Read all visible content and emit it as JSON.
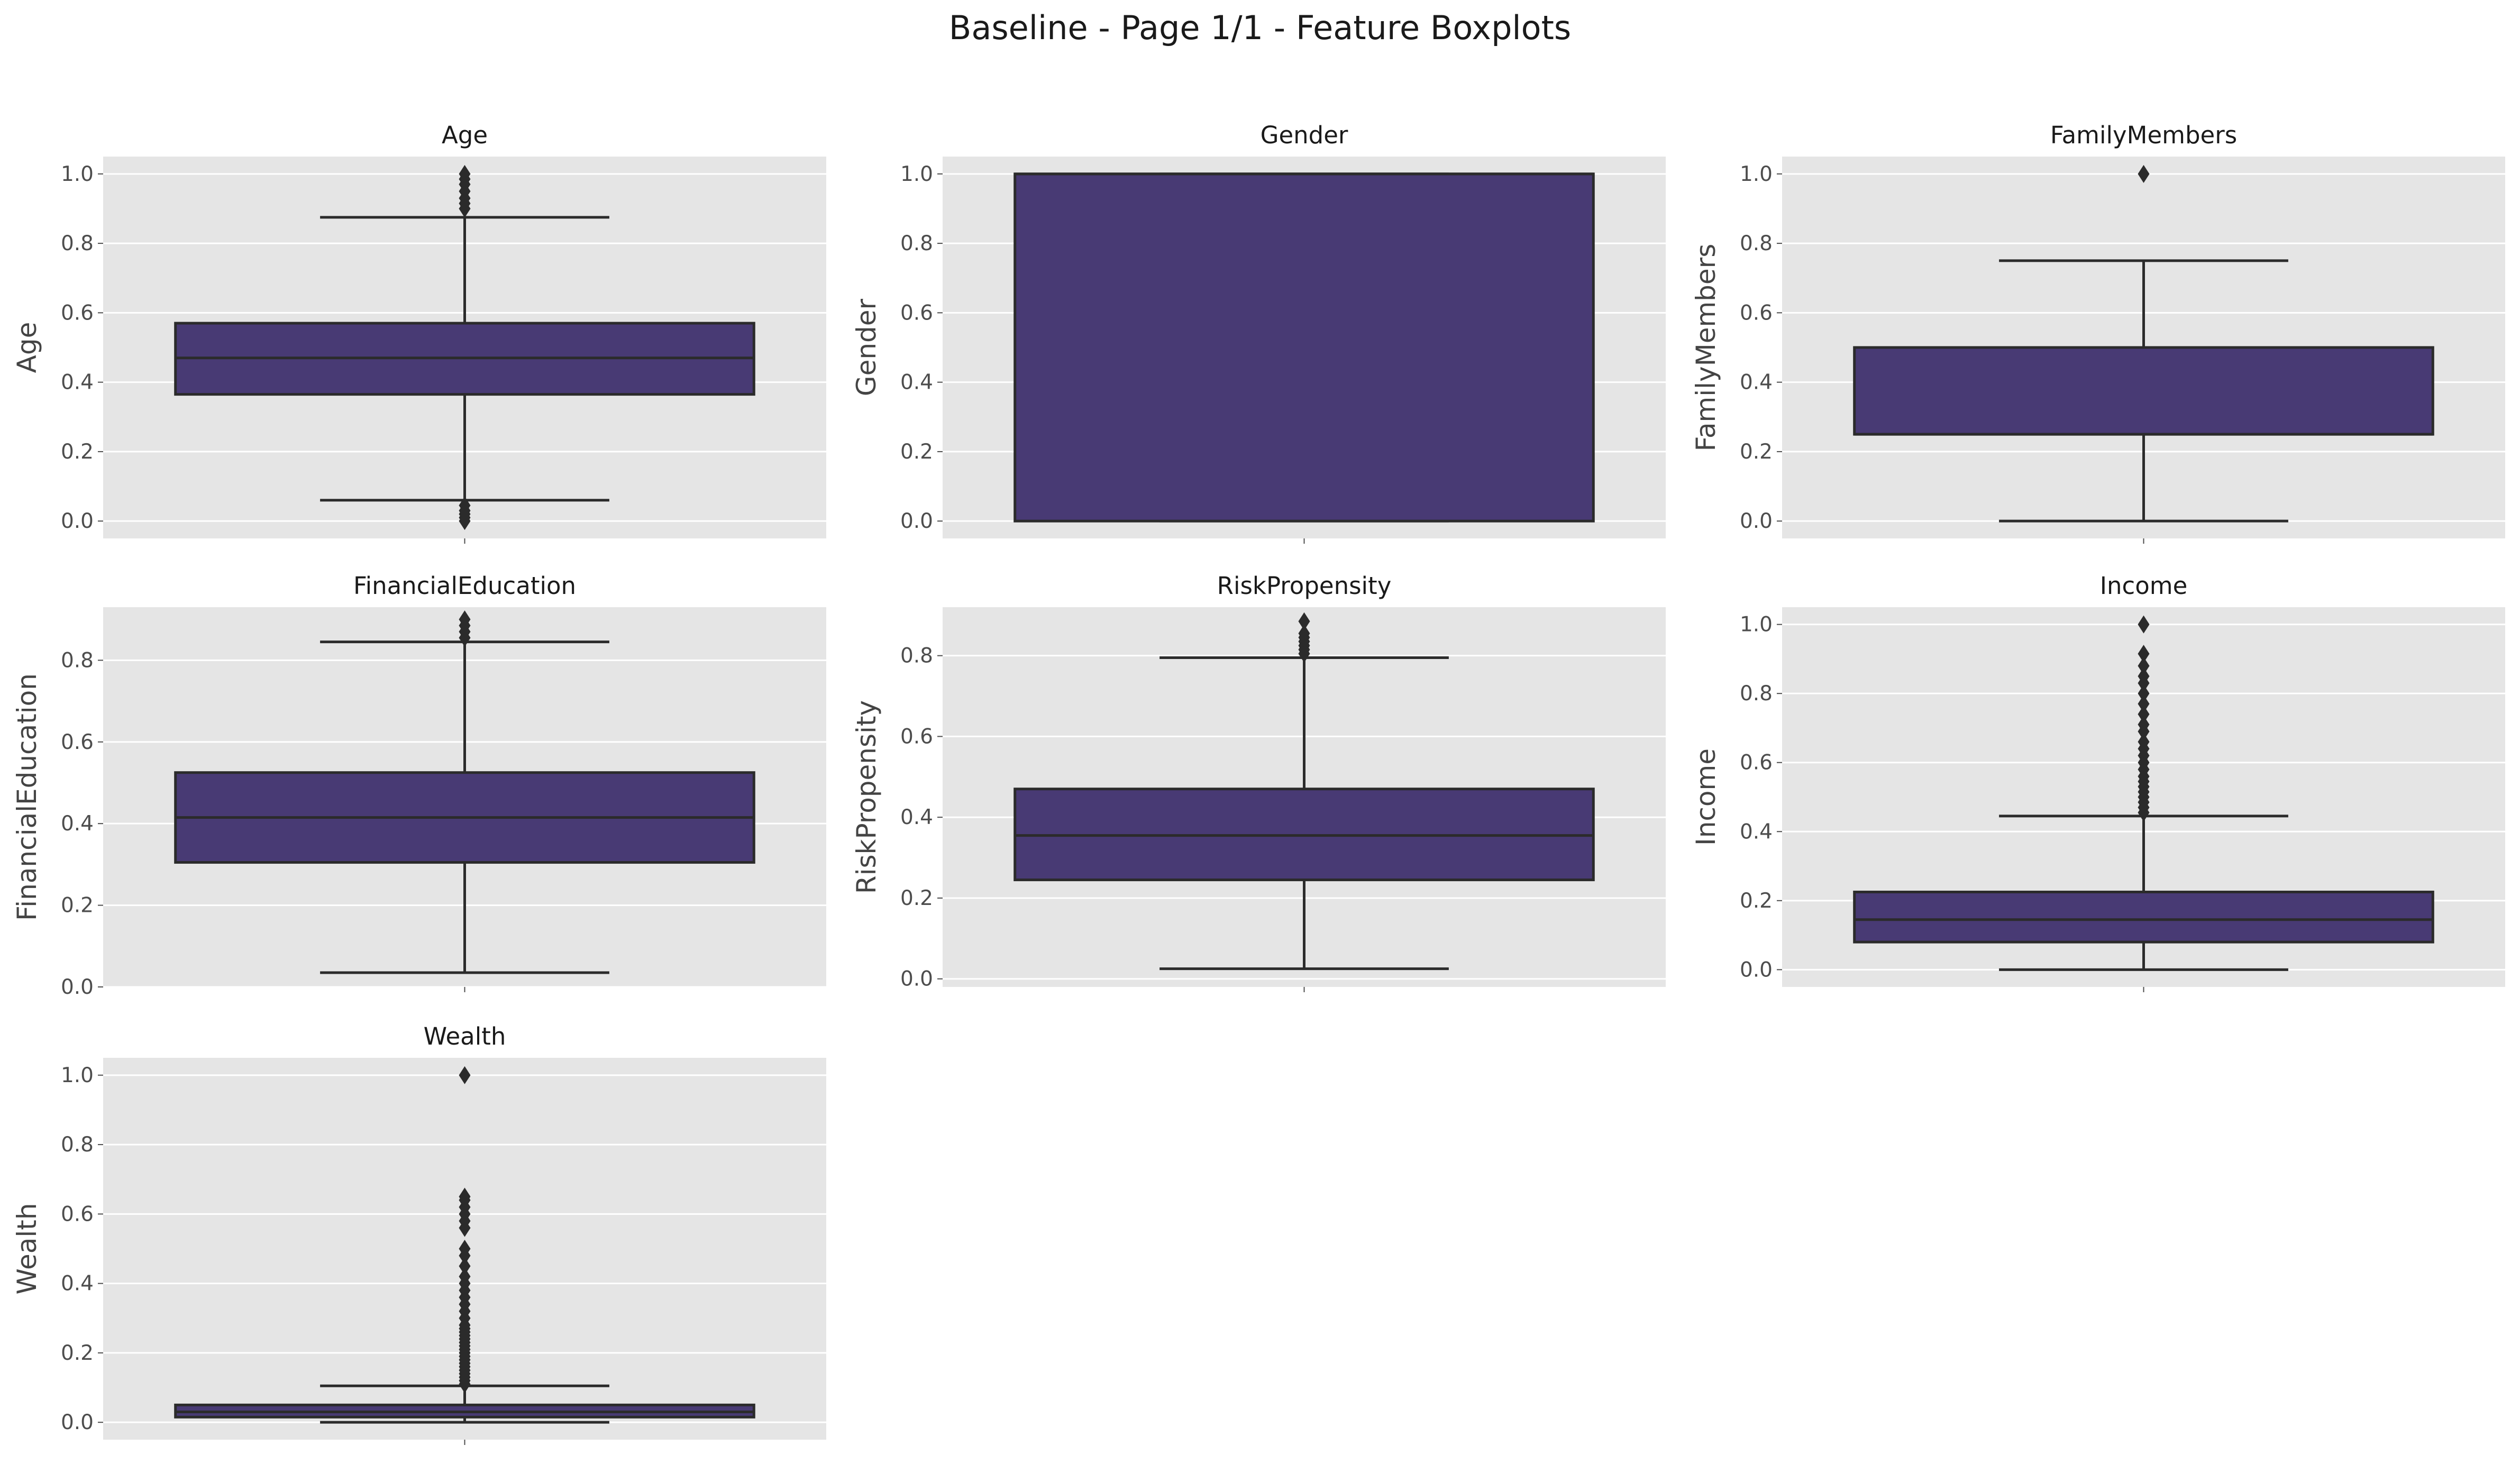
{
  "title": "Baseline - Page 1/1 - Feature Boxplots",
  "style": {
    "box_color": "#483a74",
    "panel_bg": "#e5e5e5",
    "grid_color": "#ffffff",
    "line_color": "#2b2b2b"
  },
  "chart_data": [
    {
      "type": "boxplot",
      "title": "Age",
      "ylabel": "Age",
      "ylim": [
        -0.05,
        1.05
      ],
      "yticks": [
        "0.0",
        "0.2",
        "0.4",
        "0.6",
        "0.8",
        "1.0"
      ],
      "grid": true,
      "q1": 0.365,
      "median": 0.47,
      "q3": 0.57,
      "whisker_low": 0.06,
      "whisker_high": 0.875,
      "outliers": [
        0.0,
        0.01,
        0.02,
        0.03,
        0.045,
        0.9,
        0.915,
        0.93,
        0.95,
        0.97,
        0.985,
        1.0
      ]
    },
    {
      "type": "boxplot",
      "title": "Gender",
      "ylabel": "Gender",
      "ylim": [
        -0.05,
        1.05
      ],
      "yticks": [
        "0.0",
        "0.2",
        "0.4",
        "0.6",
        "0.8",
        "1.0"
      ],
      "grid": true,
      "q1": 0.0,
      "median": 1.0,
      "q3": 1.0,
      "whisker_low": 0.0,
      "whisker_high": 1.0,
      "outliers": []
    },
    {
      "type": "boxplot",
      "title": "FamilyMembers",
      "ylabel": "FamilyMembers",
      "ylim": [
        -0.05,
        1.05
      ],
      "yticks": [
        "0.0",
        "0.2",
        "0.4",
        "0.6",
        "0.8",
        "1.0"
      ],
      "grid": true,
      "q1": 0.25,
      "median": 0.25,
      "q3": 0.5,
      "whisker_low": 0.0,
      "whisker_high": 0.75,
      "outliers": [
        1.0
      ]
    },
    {
      "type": "boxplot",
      "title": "FinancialEducation",
      "ylabel": "FinancialEducation",
      "ylim": [
        0.0,
        0.93
      ],
      "yticks": [
        "0.0",
        "0.2",
        "0.4",
        "0.6",
        "0.8"
      ],
      "grid": true,
      "q1": 0.305,
      "median": 0.415,
      "q3": 0.525,
      "whisker_low": 0.035,
      "whisker_high": 0.845,
      "outliers": [
        0.855,
        0.87,
        0.885,
        0.9
      ]
    },
    {
      "type": "boxplot",
      "title": "RiskPropensity",
      "ylabel": "RiskPropensity",
      "ylim": [
        -0.02,
        0.92
      ],
      "yticks": [
        "0.0",
        "0.2",
        "0.4",
        "0.6",
        "0.8"
      ],
      "grid": true,
      "q1": 0.245,
      "median": 0.355,
      "q3": 0.47,
      "whisker_low": 0.025,
      "whisker_high": 0.795,
      "outliers": [
        0.805,
        0.815,
        0.825,
        0.835,
        0.845,
        0.855,
        0.885
      ]
    },
    {
      "type": "boxplot",
      "title": "Income",
      "ylabel": "Income",
      "ylim": [
        -0.05,
        1.05
      ],
      "yticks": [
        "0.0",
        "0.2",
        "0.4",
        "0.6",
        "0.8",
        "1.0"
      ],
      "grid": true,
      "q1": 0.08,
      "median": 0.145,
      "q3": 0.225,
      "whisker_low": 0.0,
      "whisker_high": 0.445,
      "outliers": [
        0.455,
        0.47,
        0.485,
        0.5,
        0.515,
        0.53,
        0.545,
        0.56,
        0.58,
        0.6,
        0.62,
        0.64,
        0.66,
        0.69,
        0.71,
        0.74,
        0.77,
        0.8,
        0.83,
        0.85,
        0.88,
        0.915,
        1.0
      ]
    },
    {
      "type": "boxplot",
      "title": "Wealth",
      "ylabel": "Wealth",
      "ylim": [
        -0.05,
        1.05
      ],
      "yticks": [
        "0.0",
        "0.2",
        "0.4",
        "0.6",
        "0.8",
        "1.0"
      ],
      "grid": true,
      "q1": 0.015,
      "median": 0.03,
      "q3": 0.05,
      "whisker_low": 0.0,
      "whisker_high": 0.105,
      "outliers": [
        0.11,
        0.12,
        0.13,
        0.14,
        0.15,
        0.16,
        0.17,
        0.18,
        0.19,
        0.2,
        0.21,
        0.22,
        0.23,
        0.24,
        0.25,
        0.26,
        0.27,
        0.28,
        0.3,
        0.32,
        0.34,
        0.36,
        0.38,
        0.4,
        0.42,
        0.45,
        0.48,
        0.5,
        0.56,
        0.58,
        0.6,
        0.62,
        0.64,
        0.65,
        1.0
      ]
    }
  ]
}
